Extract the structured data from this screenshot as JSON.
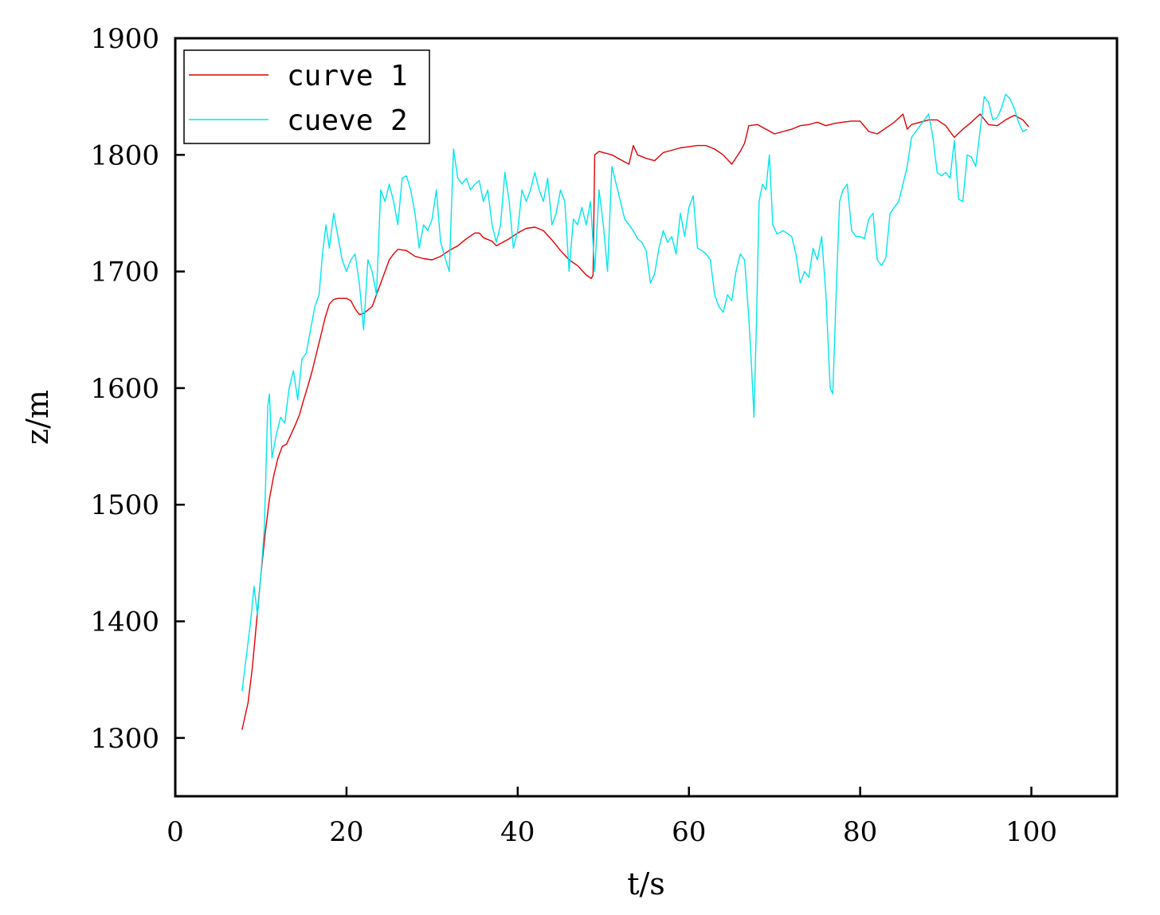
{
  "chart_data": {
    "type": "line",
    "title": "",
    "xlabel": "t/s",
    "ylabel": "z/m",
    "xlim": [
      0,
      110
    ],
    "ylim": [
      1250,
      1900
    ],
    "x_ticks": [
      0,
      20,
      40,
      60,
      80,
      100
    ],
    "y_ticks": [
      1300,
      1400,
      1500,
      1600,
      1700,
      1800,
      1900
    ],
    "x_tick_labels": [
      "0",
      "20",
      "40",
      "60",
      "80",
      "100"
    ],
    "y_tick_labels": [
      "1300",
      "1400",
      "1500",
      "1600",
      "1700",
      "1800",
      "1900"
    ],
    "grid": false,
    "legend_position": "top-left",
    "series": [
      {
        "name": "curve 1",
        "color": "#e00000",
        "points": [
          [
            7.8,
            1307
          ],
          [
            8.5,
            1330
          ],
          [
            9.0,
            1360
          ],
          [
            9.5,
            1400
          ],
          [
            10.0,
            1440
          ],
          [
            10.5,
            1475
          ],
          [
            11.0,
            1505
          ],
          [
            11.5,
            1525
          ],
          [
            12.0,
            1540
          ],
          [
            12.5,
            1550
          ],
          [
            13.0,
            1552
          ],
          [
            13.5,
            1560
          ],
          [
            14.0,
            1568
          ],
          [
            14.5,
            1577
          ],
          [
            15.0,
            1590
          ],
          [
            15.5,
            1602
          ],
          [
            16.0,
            1615
          ],
          [
            16.5,
            1630
          ],
          [
            17.0,
            1645
          ],
          [
            17.5,
            1660
          ],
          [
            18.0,
            1672
          ],
          [
            18.5,
            1676
          ],
          [
            19.0,
            1677
          ],
          [
            20.0,
            1677
          ],
          [
            20.5,
            1675
          ],
          [
            21.0,
            1668
          ],
          [
            21.5,
            1663
          ],
          [
            22.0,
            1664
          ],
          [
            22.5,
            1667
          ],
          [
            23.0,
            1670
          ],
          [
            23.5,
            1680
          ],
          [
            24.0,
            1690
          ],
          [
            24.5,
            1700
          ],
          [
            25.0,
            1710
          ],
          [
            25.5,
            1715
          ],
          [
            26.0,
            1719
          ],
          [
            27.0,
            1718
          ],
          [
            28.0,
            1713
          ],
          [
            29.0,
            1711
          ],
          [
            30.0,
            1710
          ],
          [
            31.0,
            1713
          ],
          [
            32.0,
            1718
          ],
          [
            33.0,
            1722
          ],
          [
            34.0,
            1728
          ],
          [
            35.0,
            1733
          ],
          [
            35.5,
            1733
          ],
          [
            36.0,
            1729
          ],
          [
            37.0,
            1726
          ],
          [
            37.5,
            1722
          ],
          [
            38.0,
            1724
          ],
          [
            39.0,
            1728
          ],
          [
            40.0,
            1733
          ],
          [
            41.0,
            1737
          ],
          [
            42.0,
            1738
          ],
          [
            43.0,
            1735
          ],
          [
            44.0,
            1727
          ],
          [
            45.0,
            1718
          ],
          [
            46.0,
            1710
          ],
          [
            47.0,
            1705
          ],
          [
            47.5,
            1701
          ],
          [
            48.0,
            1697
          ],
          [
            48.6,
            1694
          ],
          [
            48.8,
            1697
          ],
          [
            49.0,
            1800
          ],
          [
            49.5,
            1803
          ],
          [
            50.0,
            1802
          ],
          [
            51.0,
            1800
          ],
          [
            52.0,
            1796
          ],
          [
            53.0,
            1792
          ],
          [
            53.5,
            1808
          ],
          [
            54.0,
            1800
          ],
          [
            55.0,
            1797
          ],
          [
            56.0,
            1795
          ],
          [
            57.0,
            1802
          ],
          [
            58.0,
            1804
          ],
          [
            59.0,
            1806
          ],
          [
            60.0,
            1807
          ],
          [
            61.0,
            1808
          ],
          [
            62.0,
            1808
          ],
          [
            63.0,
            1805
          ],
          [
            64.0,
            1800
          ],
          [
            65.0,
            1792
          ],
          [
            66.0,
            1803
          ],
          [
            66.5,
            1810
          ],
          [
            67.0,
            1825
          ],
          [
            68.0,
            1826
          ],
          [
            69.0,
            1822
          ],
          [
            70.0,
            1818
          ],
          [
            71.0,
            1820
          ],
          [
            72.0,
            1822
          ],
          [
            73.0,
            1825
          ],
          [
            74.0,
            1826
          ],
          [
            75.0,
            1828
          ],
          [
            76.0,
            1825
          ],
          [
            77.0,
            1827
          ],
          [
            78.0,
            1828
          ],
          [
            79.0,
            1829
          ],
          [
            80.0,
            1829
          ],
          [
            81.0,
            1820
          ],
          [
            82.0,
            1818
          ],
          [
            83.0,
            1823
          ],
          [
            84.0,
            1828
          ],
          [
            85.0,
            1835
          ],
          [
            85.5,
            1822
          ],
          [
            86.0,
            1826
          ],
          [
            87.0,
            1828
          ],
          [
            88.0,
            1830
          ],
          [
            89.0,
            1830
          ],
          [
            90.0,
            1825
          ],
          [
            91.0,
            1815
          ],
          [
            92.0,
            1822
          ],
          [
            93.0,
            1828
          ],
          [
            94.0,
            1835
          ],
          [
            95.0,
            1826
          ],
          [
            96.0,
            1825
          ],
          [
            97.0,
            1830
          ],
          [
            98.0,
            1834
          ],
          [
            99.0,
            1830
          ],
          [
            99.7,
            1824
          ]
        ]
      },
      {
        "name": "cueve 2",
        "color": "#00e5ee",
        "points": [
          [
            7.8,
            1340
          ],
          [
            8.3,
            1370
          ],
          [
            8.8,
            1400
          ],
          [
            9.2,
            1430
          ],
          [
            9.6,
            1405
          ],
          [
            10.0,
            1440
          ],
          [
            10.4,
            1480
          ],
          [
            10.8,
            1585
          ],
          [
            11.0,
            1595
          ],
          [
            11.3,
            1540
          ],
          [
            11.8,
            1560
          ],
          [
            12.3,
            1575
          ],
          [
            12.8,
            1570
          ],
          [
            13.3,
            1600
          ],
          [
            13.8,
            1615
          ],
          [
            14.3,
            1590
          ],
          [
            14.8,
            1625
          ],
          [
            15.3,
            1630
          ],
          [
            15.8,
            1650
          ],
          [
            16.3,
            1670
          ],
          [
            16.8,
            1680
          ],
          [
            17.2,
            1715
          ],
          [
            17.6,
            1740
          ],
          [
            18.0,
            1720
          ],
          [
            18.5,
            1750
          ],
          [
            19.0,
            1730
          ],
          [
            19.5,
            1710
          ],
          [
            20.0,
            1700
          ],
          [
            20.5,
            1710
          ],
          [
            21.0,
            1715
          ],
          [
            21.5,
            1690
          ],
          [
            22.0,
            1650
          ],
          [
            22.5,
            1710
          ],
          [
            23.0,
            1700
          ],
          [
            23.5,
            1680
          ],
          [
            24.0,
            1770
          ],
          [
            24.5,
            1760
          ],
          [
            25.0,
            1775
          ],
          [
            25.5,
            1760
          ],
          [
            26.0,
            1740
          ],
          [
            26.5,
            1780
          ],
          [
            27.0,
            1782
          ],
          [
            27.5,
            1770
          ],
          [
            28.0,
            1750
          ],
          [
            28.5,
            1720
          ],
          [
            29.0,
            1740
          ],
          [
            29.5,
            1735
          ],
          [
            30.0,
            1745
          ],
          [
            30.5,
            1770
          ],
          [
            31.0,
            1725
          ],
          [
            31.5,
            1712
          ],
          [
            32.0,
            1700
          ],
          [
            32.5,
            1805
          ],
          [
            33.0,
            1780
          ],
          [
            33.5,
            1775
          ],
          [
            34.0,
            1780
          ],
          [
            34.5,
            1770
          ],
          [
            35.0,
            1775
          ],
          [
            35.5,
            1778
          ],
          [
            36.0,
            1760
          ],
          [
            36.5,
            1770
          ],
          [
            37.0,
            1740
          ],
          [
            37.5,
            1725
          ],
          [
            38.0,
            1740
          ],
          [
            38.5,
            1785
          ],
          [
            39.0,
            1760
          ],
          [
            39.5,
            1720
          ],
          [
            40.0,
            1735
          ],
          [
            40.5,
            1770
          ],
          [
            41.0,
            1760
          ],
          [
            41.5,
            1770
          ],
          [
            42.0,
            1785
          ],
          [
            42.5,
            1770
          ],
          [
            43.0,
            1760
          ],
          [
            43.5,
            1780
          ],
          [
            44.0,
            1740
          ],
          [
            44.5,
            1750
          ],
          [
            45.0,
            1770
          ],
          [
            45.5,
            1760
          ],
          [
            46.0,
            1700
          ],
          [
            46.5,
            1745
          ],
          [
            47.0,
            1740
          ],
          [
            47.5,
            1755
          ],
          [
            48.0,
            1740
          ],
          [
            48.5,
            1760
          ],
          [
            49.0,
            1700
          ],
          [
            49.5,
            1770
          ],
          [
            50.0,
            1740
          ],
          [
            50.5,
            1700
          ],
          [
            51.0,
            1790
          ],
          [
            51.5,
            1775
          ],
          [
            52.0,
            1760
          ],
          [
            52.5,
            1745
          ],
          [
            53.0,
            1740
          ],
          [
            53.5,
            1735
          ],
          [
            54.0,
            1728
          ],
          [
            54.5,
            1725
          ],
          [
            55.0,
            1718
          ],
          [
            55.5,
            1690
          ],
          [
            56.0,
            1698
          ],
          [
            56.5,
            1720
          ],
          [
            57.0,
            1735
          ],
          [
            57.5,
            1725
          ],
          [
            58.0,
            1730
          ],
          [
            58.5,
            1715
          ],
          [
            59.0,
            1750
          ],
          [
            59.5,
            1730
          ],
          [
            60.0,
            1755
          ],
          [
            60.5,
            1765
          ],
          [
            61.0,
            1720
          ],
          [
            61.5,
            1718
          ],
          [
            62.0,
            1715
          ],
          [
            62.5,
            1710
          ],
          [
            63.0,
            1680
          ],
          [
            63.5,
            1670
          ],
          [
            64.0,
            1665
          ],
          [
            64.5,
            1680
          ],
          [
            65.0,
            1675
          ],
          [
            65.5,
            1700
          ],
          [
            66.0,
            1715
          ],
          [
            66.5,
            1710
          ],
          [
            67.0,
            1660
          ],
          [
            67.3,
            1620
          ],
          [
            67.6,
            1575
          ],
          [
            67.9,
            1660
          ],
          [
            68.2,
            1760
          ],
          [
            68.6,
            1775
          ],
          [
            69.0,
            1770
          ],
          [
            69.4,
            1800
          ],
          [
            69.8,
            1740
          ],
          [
            70.3,
            1732
          ],
          [
            71.0,
            1735
          ],
          [
            72.0,
            1730
          ],
          [
            72.5,
            1715
          ],
          [
            73.0,
            1690
          ],
          [
            73.5,
            1700
          ],
          [
            74.0,
            1695
          ],
          [
            74.5,
            1720
          ],
          [
            75.0,
            1710
          ],
          [
            75.5,
            1730
          ],
          [
            76.0,
            1680
          ],
          [
            76.5,
            1600
          ],
          [
            76.8,
            1595
          ],
          [
            77.2,
            1680
          ],
          [
            77.6,
            1760
          ],
          [
            78.0,
            1770
          ],
          [
            78.5,
            1775
          ],
          [
            79.0,
            1735
          ],
          [
            79.5,
            1730
          ],
          [
            80.0,
            1730
          ],
          [
            80.5,
            1728
          ],
          [
            81.0,
            1745
          ],
          [
            81.5,
            1750
          ],
          [
            82.0,
            1710
          ],
          [
            82.5,
            1705
          ],
          [
            83.0,
            1712
          ],
          [
            83.5,
            1750
          ],
          [
            84.0,
            1755
          ],
          [
            84.5,
            1760
          ],
          [
            85.0,
            1775
          ],
          [
            85.5,
            1790
          ],
          [
            86.0,
            1815
          ],
          [
            86.5,
            1820
          ],
          [
            87.0,
            1825
          ],
          [
            87.5,
            1830
          ],
          [
            88.0,
            1835
          ],
          [
            88.5,
            1815
          ],
          [
            89.0,
            1785
          ],
          [
            89.5,
            1782
          ],
          [
            90.0,
            1785
          ],
          [
            90.5,
            1780
          ],
          [
            91.0,
            1812
          ],
          [
            91.5,
            1762
          ],
          [
            92.0,
            1760
          ],
          [
            92.5,
            1800
          ],
          [
            93.0,
            1798
          ],
          [
            93.5,
            1790
          ],
          [
            94.0,
            1820
          ],
          [
            94.5,
            1850
          ],
          [
            95.0,
            1845
          ],
          [
            95.5,
            1830
          ],
          [
            96.0,
            1832
          ],
          [
            96.5,
            1840
          ],
          [
            97.0,
            1852
          ],
          [
            97.5,
            1848
          ],
          [
            98.0,
            1840
          ],
          [
            98.5,
            1828
          ],
          [
            99.0,
            1820
          ],
          [
            99.5,
            1822
          ]
        ]
      }
    ]
  }
}
